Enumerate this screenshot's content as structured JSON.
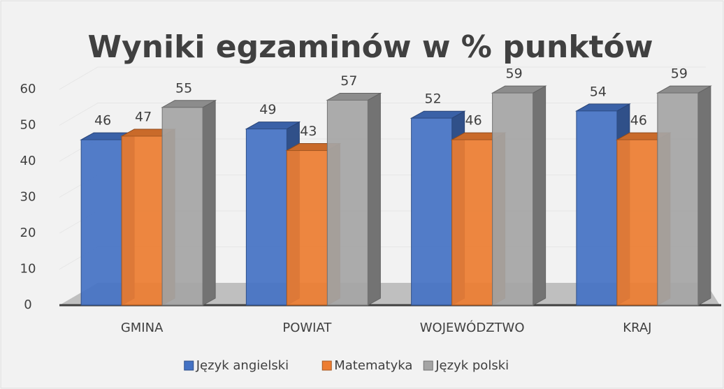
{
  "chart_data": {
    "type": "bar3d",
    "title": "Wyniki egzaminów w % punktów",
    "categories": [
      "GMINA",
      "POWIAT",
      "WOJEWÓDZTWO",
      "KRAJ"
    ],
    "series": [
      {
        "name": "Język angielski",
        "color": "#4472c4",
        "values": [
          46,
          49,
          52,
          54
        ]
      },
      {
        "name": "Matematyka",
        "color": "#ed7d31",
        "values": [
          47,
          43,
          46,
          46
        ]
      },
      {
        "name": "Język polski",
        "color": "#a5a5a5",
        "values": [
          55,
          57,
          59,
          59
        ]
      }
    ],
    "ylim": [
      0,
      60
    ],
    "yticks": [
      0,
      10,
      20,
      30,
      40,
      50,
      60
    ],
    "grid": true,
    "legend": "bottom"
  }
}
